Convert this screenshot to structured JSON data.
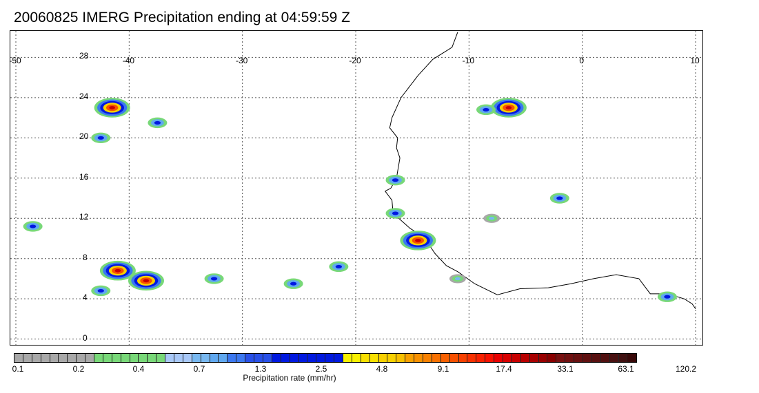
{
  "title": "20060825 IMERG Precipitation ending at 04:59:59 Z",
  "map": {
    "lon_range": [
      -50,
      10
    ],
    "lat_range": [
      -1,
      30
    ],
    "lon_ticks": [
      "-50",
      "-40",
      "-30",
      "-20",
      "-10",
      "0",
      "10"
    ],
    "lat_ticks": [
      "28",
      "24",
      "20",
      "16",
      "12",
      "8",
      "4",
      "0"
    ],
    "grid": "dotted",
    "coastline_color": "#000000"
  },
  "colorbar": {
    "title": "Precipitation rate (mm/hr)",
    "tick_labels": [
      "0.1",
      "0.2",
      "0.4",
      "0.7",
      "1.3",
      "2.5",
      "4.8",
      "9.1",
      "17.4",
      "33.1",
      "63.1",
      "120.2"
    ],
    "colors": [
      "#a8a8a8",
      "#a8a8a8",
      "#a8a8a8",
      "#a8a8a8",
      "#a8a8a8",
      "#a8a8a8",
      "#a8a8a8",
      "#a8a8a8",
      "#a8a8a8",
      "#78d878",
      "#78d878",
      "#78d878",
      "#78d878",
      "#78d878",
      "#78d878",
      "#78d878",
      "#78d878",
      "#a8c8f8",
      "#a8c8f8",
      "#a8c8f8",
      "#78b8f0",
      "#78b8f0",
      "#60a8f0",
      "#60a8f0",
      "#3c78f0",
      "#3c78f0",
      "#2850e8",
      "#2850e8",
      "#2850e8",
      "#0018e0",
      "#0018e0",
      "#0018e0",
      "#0018e0",
      "#0018e0",
      "#0018e0",
      "#0018e0",
      "#0018e0",
      "#f8f000",
      "#f8f000",
      "#f8e000",
      "#f8e000",
      "#f8d000",
      "#f8d000",
      "#f8c000",
      "#f8a000",
      "#f89000",
      "#f88000",
      "#f87000",
      "#f86000",
      "#f85000",
      "#f84000",
      "#f83000",
      "#f82000",
      "#f81000",
      "#e80000",
      "#d80000",
      "#c80000",
      "#b80000",
      "#a80000",
      "#980000",
      "#880000",
      "#781010",
      "#701010",
      "#681010",
      "#601010",
      "#581010",
      "#501010",
      "#481010",
      "#401010",
      "#380808"
    ]
  },
  "precip_cells": [
    {
      "lon": -41.5,
      "lat": 23.0,
      "intensity": "heavy"
    },
    {
      "lon": -42.5,
      "lat": 20.0,
      "intensity": "moderate"
    },
    {
      "lon": -37.5,
      "lat": 21.5,
      "intensity": "moderate"
    },
    {
      "lon": -41.0,
      "lat": 6.8,
      "intensity": "heavy"
    },
    {
      "lon": -38.5,
      "lat": 5.8,
      "intensity": "heavy"
    },
    {
      "lon": -42.5,
      "lat": 4.8,
      "intensity": "moderate"
    },
    {
      "lon": -32.5,
      "lat": 6.0,
      "intensity": "moderate"
    },
    {
      "lon": -14.5,
      "lat": 9.8,
      "intensity": "heavy"
    },
    {
      "lon": -16.5,
      "lat": 12.5,
      "intensity": "moderate"
    },
    {
      "lon": -16.5,
      "lat": 15.8,
      "intensity": "moderate"
    },
    {
      "lon": -11.0,
      "lat": 6.0,
      "intensity": "light"
    },
    {
      "lon": -6.5,
      "lat": 23.0,
      "intensity": "heavy"
    },
    {
      "lon": -8.5,
      "lat": 22.8,
      "intensity": "moderate"
    },
    {
      "lon": -2.0,
      "lat": 14.0,
      "intensity": "moderate"
    },
    {
      "lon": -8.0,
      "lat": 12.0,
      "intensity": "light"
    },
    {
      "lon": -48.5,
      "lat": 11.2,
      "intensity": "moderate"
    },
    {
      "lon": -25.5,
      "lat": 5.5,
      "intensity": "moderate"
    },
    {
      "lon": -21.5,
      "lat": 7.2,
      "intensity": "moderate"
    },
    {
      "lon": 7.5,
      "lat": 4.2,
      "intensity": "moderate"
    }
  ]
}
